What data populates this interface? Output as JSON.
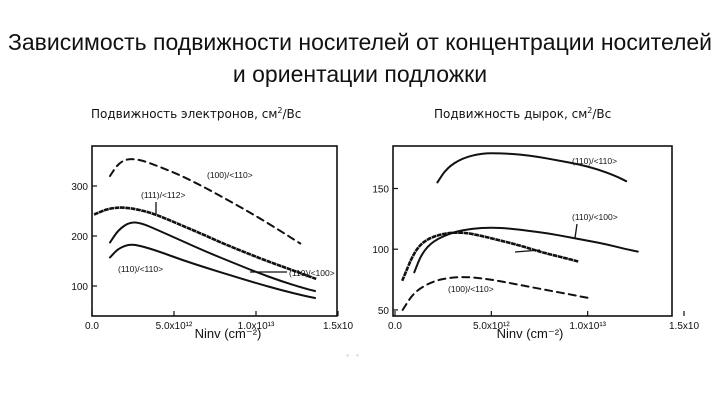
{
  "slide": {
    "title": "Зависимость подвижности носителей от концентрации носителей и ориентации подложки",
    "caption_left": "Подвижность электронов, см",
    "caption_left_unit": "2",
    "caption_left_tail": "/Вс",
    "caption_right": "Подвижность дырок, см",
    "caption_right_unit": "2",
    "caption_right_tail": "/Вс",
    "artifact": "◦ ◦"
  },
  "chart_data": [
    {
      "type": "line",
      "title": "",
      "xlabel": "Ninv (cm⁻²)",
      "ylabel": "",
      "xlim": [
        0,
        15000000000000.0
      ],
      "ylim": [
        40,
        380
      ],
      "x_ticks": [
        {
          "value": 0,
          "label": "0.0"
        },
        {
          "value": 5000000000000.0,
          "label": "5.0x10¹²"
        },
        {
          "value": 10000000000000.0,
          "label": "1.0x10¹³"
        },
        {
          "value": 15000000000000.0,
          "label": "1.5x10"
        }
      ],
      "y_ticks": [
        {
          "value": 100,
          "label": "100"
        },
        {
          "value": 200,
          "label": "200"
        },
        {
          "value": 300,
          "label": "300"
        }
      ],
      "series": [
        {
          "name": "(100)/<110>",
          "style": "dashed",
          "x": [
            1100000000000.0,
            1600000000000.0,
            2200000000000.0,
            3000000000000.0,
            4000000000000.0,
            5500000000000.0,
            7000000000000.0,
            8500000000000.0,
            10000000000000.0,
            11500000000000.0,
            12700000000000.0
          ],
          "y": [
            320,
            345,
            355,
            352,
            340,
            320,
            295,
            268,
            240,
            210,
            185
          ]
        },
        {
          "name": "(111)/<112>",
          "style": "dotted",
          "x": [
            200000000000.0,
            1000000000000.0,
            2000000000000.0,
            3500000000000.0,
            5000000000000.0,
            6500000000000.0,
            8000000000000.0,
            9500000000000.0,
            11000000000000.0,
            12200000000000.0,
            13600000000000.0
          ],
          "y": [
            244,
            255,
            258,
            248,
            228,
            207,
            185,
            165,
            146,
            132,
            115
          ]
        },
        {
          "name": "(110)/<100>",
          "style": "solid",
          "x": [
            1100000000000.0,
            1600000000000.0,
            2300000000000.0,
            3000000000000.0,
            4000000000000.0,
            5500000000000.0,
            7000000000000.0,
            8500000000000.0,
            10000000000000.0,
            11500000000000.0,
            13000000000000.0,
            13600000000000.0
          ],
          "y": [
            187,
            212,
            228,
            226,
            212,
            190,
            168,
            148,
            128,
            110,
            95,
            90
          ]
        },
        {
          "name": "(110)/<110>",
          "style": "solid",
          "x": [
            1100000000000.0,
            1600000000000.0,
            2300000000000.0,
            3000000000000.0,
            4000000000000.0,
            5500000000000.0,
            7000000000000.0,
            8500000000000.0,
            10000000000000.0,
            11500000000000.0,
            13000000000000.0,
            13600000000000.0
          ],
          "y": [
            157,
            175,
            184,
            180,
            170,
            152,
            136,
            121,
            106,
            92,
            80,
            76
          ]
        }
      ],
      "annotations": [
        "(100)/<110>",
        "(111)/<112>",
        "(110)/<100>",
        "(110)/<110>"
      ]
    },
    {
      "type": "line",
      "title": "",
      "xlabel": "Ninv (cm⁻²)",
      "ylabel": "",
      "xlim": [
        0,
        15000000000000.0
      ],
      "ylim": [
        45,
        185
      ],
      "x_ticks": [
        {
          "value": 0,
          "label": "0.0"
        },
        {
          "value": 5000000000000.0,
          "label": "5.0x10¹²"
        },
        {
          "value": 10000000000000.0,
          "label": "1.0x10¹³"
        },
        {
          "value": 15000000000000.0,
          "label": "1.5x10"
        }
      ],
      "y_ticks": [
        {
          "value": 50,
          "label": "50"
        },
        {
          "value": 100,
          "label": "100"
        },
        {
          "value": 150,
          "label": "150"
        }
      ],
      "series": [
        {
          "name": "(110)/<110>",
          "style": "solid",
          "x": [
            2200000000000.0,
            2700000000000.0,
            3500000000000.0,
            4500000000000.0,
            5500000000000.0,
            6500000000000.0,
            7500000000000.0,
            8500000000000.0,
            9500000000000.0,
            10500000000000.0,
            11500000000000.0,
            12000000000000.0
          ],
          "y": [
            155,
            167,
            175,
            179,
            179,
            178,
            176,
            173,
            170,
            166,
            160,
            156
          ]
        },
        {
          "name": "(110)/<100>",
          "style": "solid",
          "x": [
            1000000000000.0,
            1400000000000.0,
            2000000000000.0,
            3000000000000.0,
            4000000000000.0,
            5000000000000.0,
            6000000000000.0,
            7000000000000.0,
            8000000000000.0,
            9000000000000.0,
            10000000000000.0,
            11000000000000.0,
            12000000000000.0,
            12600000000000.0
          ],
          "y": [
            81,
            97,
            107,
            114,
            117,
            118,
            117,
            115,
            113,
            110,
            107,
            104,
            100,
            98
          ]
        },
        {
          "name": "",
          "style": "dotted",
          "x": [
            400000000000.0,
            1000000000000.0,
            1600000000000.0,
            2500000000000.0,
            3500000000000.0,
            4500000000000.0,
            5500000000000.0,
            6500000000000.0,
            7500000000000.0,
            8500000000000.0,
            9500000000000.0
          ],
          "y": [
            75,
            98,
            108,
            113,
            114,
            111,
            107,
            103,
            98,
            94,
            90
          ]
        },
        {
          "name": "(100)/<110>",
          "style": "dashed",
          "x": [
            400000000000.0,
            1000000000000.0,
            2000000000000.0,
            3000000000000.0,
            4000000000000.0,
            5000000000000.0,
            6000000000000.0,
            7000000000000.0,
            8000000000000.0,
            9000000000000.0,
            10000000000000.0
          ],
          "y": [
            50,
            65,
            74,
            77,
            77,
            75,
            72,
            69,
            66,
            63,
            60
          ]
        }
      ],
      "annotations": [
        "(110)/<110>",
        "(110)/<100>",
        "(100)/<110>"
      ]
    }
  ]
}
